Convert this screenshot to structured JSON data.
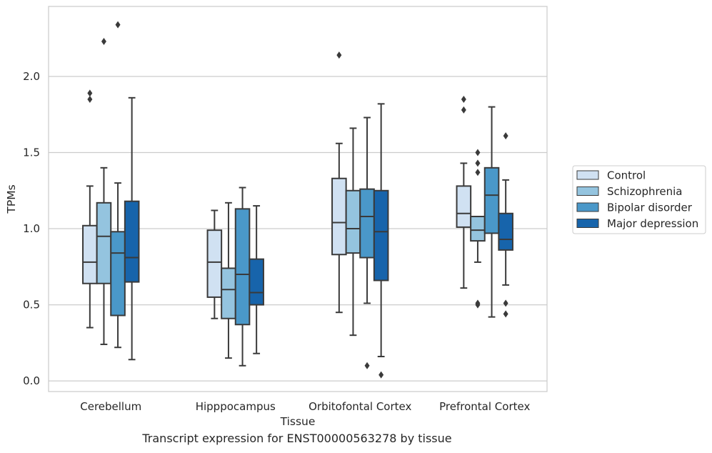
{
  "chart_data": {
    "type": "box",
    "caption": "Transcript expression for ENST00000563278 by tissue",
    "xlabel": "Tissue",
    "ylabel": "TPMs",
    "ylim": [
      -0.07,
      2.46
    ],
    "yticks": [
      0.0,
      0.5,
      1.0,
      1.5,
      2.0
    ],
    "ytick_labels": [
      "0.0",
      "0.5",
      "1.0",
      "1.5",
      "2.0"
    ],
    "grid": "horizontal",
    "legend_position": "right",
    "categories": [
      "Cerebellum",
      "Hipppocampus",
      "Orbitofontal Cortex",
      "Prefrontal Cortex"
    ],
    "series": [
      {
        "name": "Control",
        "color": "#d0e1f2",
        "boxes": [
          {
            "whislo": 0.35,
            "q1": 0.64,
            "med": 0.78,
            "q3": 1.02,
            "whishi": 1.28,
            "fliers": [
              1.85,
              1.89
            ]
          },
          {
            "whislo": 0.41,
            "q1": 0.55,
            "med": 0.78,
            "q3": 0.99,
            "whishi": 1.12,
            "fliers": []
          },
          {
            "whislo": 0.45,
            "q1": 0.83,
            "med": 1.04,
            "q3": 1.33,
            "whishi": 1.56,
            "fliers": [
              2.14
            ]
          },
          {
            "whislo": 0.61,
            "q1": 1.01,
            "med": 1.1,
            "q3": 1.28,
            "whishi": 1.43,
            "fliers": [
              1.78,
              1.85
            ]
          }
        ]
      },
      {
        "name": "Schizophrenia",
        "color": "#94c4df",
        "boxes": [
          {
            "whislo": 0.24,
            "q1": 0.64,
            "med": 0.95,
            "q3": 1.17,
            "whishi": 1.4,
            "fliers": [
              2.23
            ]
          },
          {
            "whislo": 0.15,
            "q1": 0.41,
            "med": 0.6,
            "q3": 0.74,
            "whishi": 1.17,
            "fliers": []
          },
          {
            "whislo": 0.3,
            "q1": 0.84,
            "med": 1.0,
            "q3": 1.25,
            "whishi": 1.66,
            "fliers": []
          },
          {
            "whislo": 0.78,
            "q1": 0.92,
            "med": 0.99,
            "q3": 1.08,
            "whishi": 1.08,
            "fliers": [
              0.5,
              0.51,
              1.37,
              1.43,
              1.5
            ]
          }
        ]
      },
      {
        "name": "Bipolar disorder",
        "color": "#4a98c9",
        "boxes": [
          {
            "whislo": 0.22,
            "q1": 0.43,
            "med": 0.84,
            "q3": 0.98,
            "whishi": 1.3,
            "fliers": [
              2.34
            ]
          },
          {
            "whislo": 0.1,
            "q1": 0.37,
            "med": 0.7,
            "q3": 1.13,
            "whishi": 1.27,
            "fliers": []
          },
          {
            "whislo": 0.51,
            "q1": 0.81,
            "med": 1.08,
            "q3": 1.26,
            "whishi": 1.73,
            "fliers": [
              0.1
            ]
          },
          {
            "whislo": 0.42,
            "q1": 0.97,
            "med": 1.22,
            "q3": 1.4,
            "whishi": 1.8,
            "fliers": []
          }
        ]
      },
      {
        "name": "Major depression",
        "color": "#1764ab",
        "boxes": [
          {
            "whislo": 0.14,
            "q1": 0.65,
            "med": 0.81,
            "q3": 1.18,
            "whishi": 1.86,
            "fliers": []
          },
          {
            "whislo": 0.18,
            "q1": 0.5,
            "med": 0.58,
            "q3": 0.8,
            "whishi": 1.15,
            "fliers": []
          },
          {
            "whislo": 0.16,
            "q1": 0.66,
            "med": 0.98,
            "q3": 1.25,
            "whishi": 1.82,
            "fliers": [
              0.04
            ]
          },
          {
            "whislo": 0.63,
            "q1": 0.86,
            "med": 0.93,
            "q3": 1.1,
            "whishi": 1.32,
            "fliers": [
              0.44,
              0.51,
              1.61
            ]
          }
        ]
      }
    ]
  }
}
